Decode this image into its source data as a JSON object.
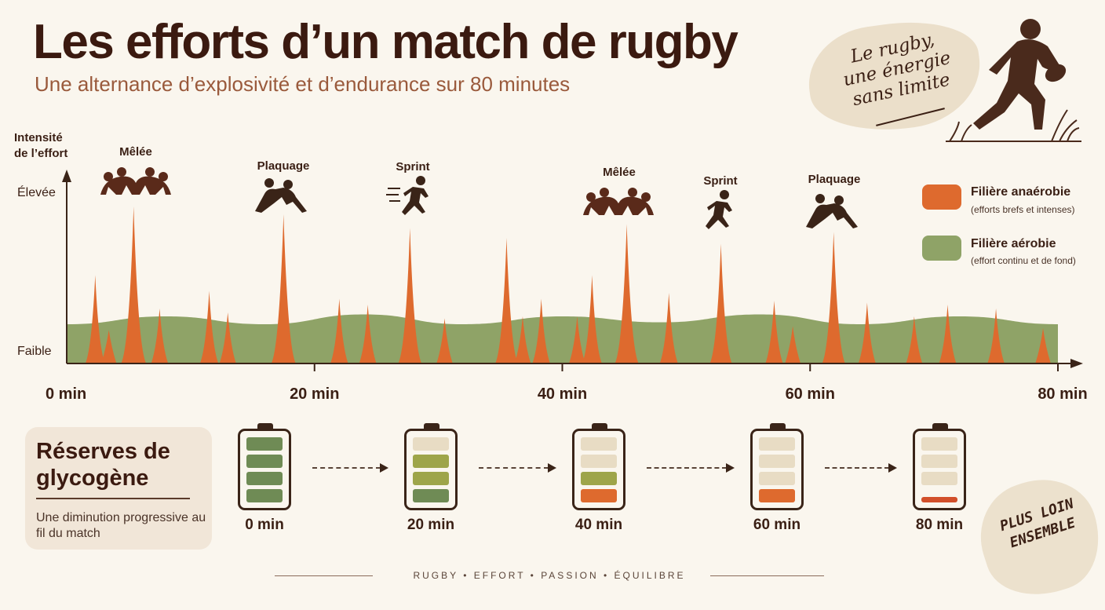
{
  "title": "Les efforts d’un match de rugby",
  "subtitle": "Une alternance d’explosivité et d’endurance sur 80 minutes",
  "slogan": [
    "Le rugby,",
    "une énergie",
    "sans limite"
  ],
  "colors": {
    "anaerobic": "#de6a2e",
    "aerobic": "#8fa367",
    "text": "#3a1f14",
    "background": "#faf6ee"
  },
  "chart_data": {
    "type": "area",
    "xlabel": "",
    "ylabel": "Intensité de l’effort",
    "ylabel_lines": [
      "Intensité",
      "de l’effort"
    ],
    "y_levels": [
      "Élevée",
      "Faible"
    ],
    "x_ticks": [
      {
        "x": 0,
        "label": "0 min"
      },
      {
        "x": 20,
        "label": "20 min"
      },
      {
        "x": 40,
        "label": "40 min"
      },
      {
        "x": 60,
        "label": "60 min"
      },
      {
        "x": 80,
        "label": "80 min"
      }
    ],
    "xlim": [
      0,
      80
    ],
    "ylim": [
      0,
      1
    ],
    "series": [
      {
        "name": "Filière aérobie",
        "description": "(effort continu et de fond)",
        "color": "#8fa367",
        "x": [
          0,
          8,
          16,
          24,
          32,
          40,
          48,
          56,
          64,
          72,
          80
        ],
        "values": [
          0.2,
          0.24,
          0.2,
          0.25,
          0.2,
          0.24,
          0.21,
          0.25,
          0.2,
          0.24,
          0.2
        ]
      },
      {
        "name": "Filière anaérobie",
        "description": "(efforts brefs et intenses)",
        "color": "#de6a2e",
        "x": [
          2.3,
          3.4,
          5.4,
          7.5,
          11.5,
          13,
          17.5,
          22,
          24.3,
          27.7,
          30.5,
          35.5,
          36.8,
          38.3,
          41.2,
          42.4,
          45.2,
          48.6,
          52.8,
          57.1,
          58.6,
          61.9,
          64.6,
          68.4,
          71.1,
          75,
          78.8
        ],
        "values": [
          0.45,
          0.17,
          0.8,
          0.28,
          0.37,
          0.26,
          0.76,
          0.33,
          0.3,
          0.69,
          0.23,
          0.64,
          0.24,
          0.33,
          0.24,
          0.45,
          0.71,
          0.36,
          0.61,
          0.32,
          0.19,
          0.67,
          0.31,
          0.24,
          0.3,
          0.28,
          0.18
        ]
      }
    ],
    "annotations": [
      {
        "label": "Mêlée",
        "x": 5
      },
      {
        "label": "Plaquage",
        "x": 17.5
      },
      {
        "label": "Sprint",
        "x": 28.5
      },
      {
        "label": "Mêlée",
        "x": 44.5
      },
      {
        "label": "Sprint",
        "x": 53.5
      },
      {
        "label": "Plaquage",
        "x": 62.5
      }
    ],
    "legend_position": "right"
  },
  "reserves": {
    "title": "Réserves de glycogène",
    "description": "Une diminution progressive au fil du match",
    "batteries": [
      {
        "label": "0 min",
        "level": 1.0,
        "cells": [
          "green",
          "green",
          "green",
          "green"
        ]
      },
      {
        "label": "20 min",
        "level": 0.75,
        "cells": [
          "empty",
          "olive",
          "olive",
          "green"
        ]
      },
      {
        "label": "40 min",
        "level": 0.5,
        "cells": [
          "empty",
          "empty",
          "olive",
          "orange"
        ]
      },
      {
        "label": "60 min",
        "level": 0.25,
        "cells": [
          "empty",
          "empty",
          "empty",
          "orange"
        ]
      },
      {
        "label": "80 min",
        "level": 0.08,
        "cells": [
          "empty",
          "empty",
          "empty",
          "red-thin"
        ]
      }
    ],
    "cell_colors": {
      "green": "#6f8b55",
      "olive": "#9ea54a",
      "orange": "#de6a2e",
      "red-thin": "#d24f2a",
      "empty": "#e8dcc4"
    }
  },
  "footer": "RUGBY • EFFORT • PASSION • ÉQUILIBRE",
  "tagline": [
    "PLUS LOIN",
    "ENSEMBLE"
  ],
  "icons": {
    "runner": "rugby-runner-icon",
    "scrum": "scrum-icon",
    "tackle": "tackle-icon",
    "sprint": "sprint-icon"
  }
}
